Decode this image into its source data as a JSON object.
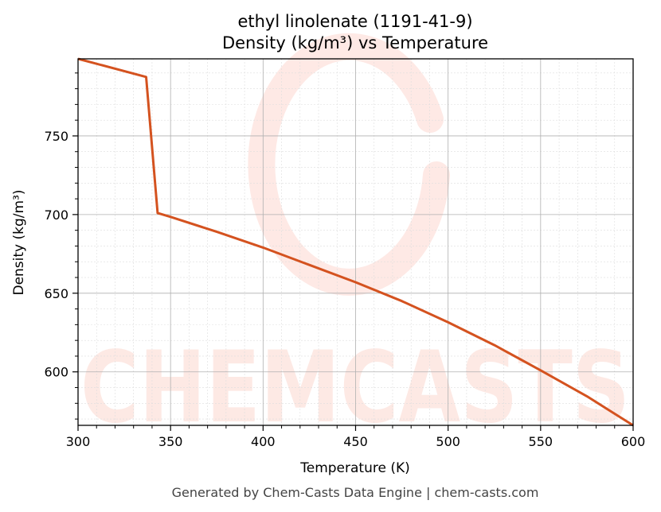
{
  "chart_data": {
    "type": "line",
    "title": "ethyl linolenate (1191-41-9)",
    "subtitle": "Density (kg/m³) vs Temperature",
    "xlabel": "Temperature (K)",
    "ylabel": "Density (kg/m³)",
    "xlim": [
      300,
      600
    ],
    "ylim": [
      566,
      799
    ],
    "xticks": [
      300,
      350,
      400,
      450,
      500,
      550,
      600
    ],
    "yticks": [
      600,
      650,
      700,
      750
    ],
    "grid": true,
    "series": [
      {
        "color": "#d4521f",
        "x": [
          300,
          336.8,
          343,
          350,
          375,
          400,
          425,
          450,
          475,
          500,
          525,
          550,
          575,
          600
        ],
        "y": [
          799,
          787.5,
          701,
          698.5,
          689,
          679,
          668,
          657,
          645,
          631.5,
          617,
          601,
          584.5,
          566
        ]
      }
    ],
    "footer": "Generated by Chem-Casts Data Engine | chem-casts.com",
    "watermark": "CHEMCASTS"
  }
}
